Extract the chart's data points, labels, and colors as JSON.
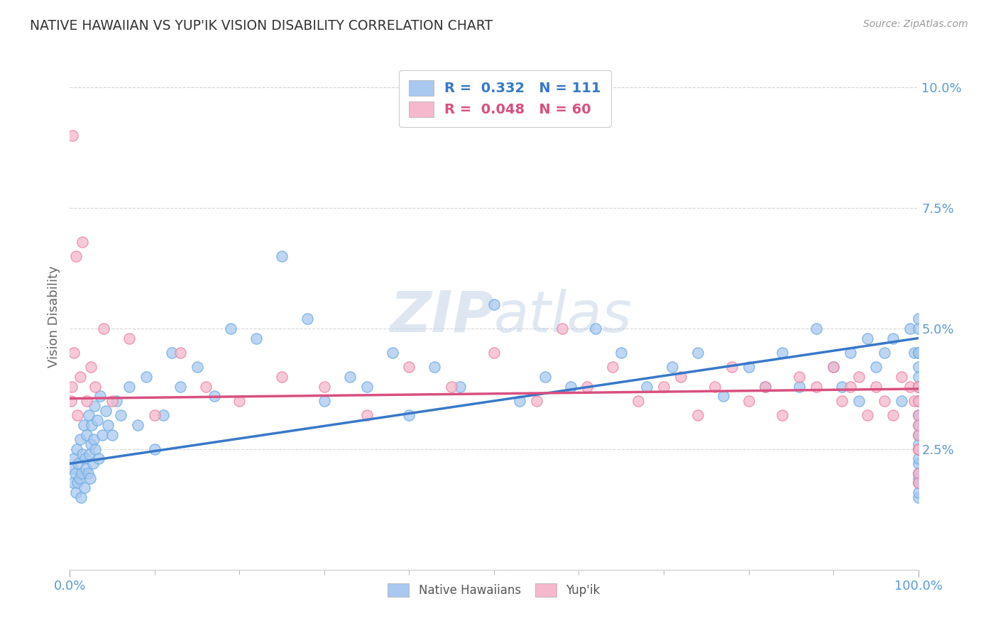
{
  "title": "NATIVE HAWAIIAN VS YUP'IK VISION DISABILITY CORRELATION CHART",
  "source": "Source: ZipAtlas.com",
  "ylabel": "Vision Disability",
  "xlim": [
    0,
    100
  ],
  "ylim": [
    0,
    10.5
  ],
  "blue_color": "#a8c8f0",
  "blue_edge_color": "#6aaae0",
  "pink_color": "#f5b8cc",
  "pink_edge_color": "#e880a0",
  "blue_line_color": "#3878c8",
  "pink_line_color": "#d85080",
  "watermark": "ZIPatlas",
  "background_color": "#ffffff",
  "grid_color": "#cccccc",
  "tick_color": "#5b9bd5",
  "title_color": "#333333",
  "blue_r": 0.332,
  "blue_n": 111,
  "pink_r": 0.048,
  "pink_n": 60,
  "blue_line_x0": 0,
  "blue_line_y0": 2.2,
  "blue_line_x1": 100,
  "blue_line_y1": 4.8,
  "pink_line_x0": 0,
  "pink_line_y0": 3.55,
  "pink_line_x1": 100,
  "pink_line_y1": 3.75,
  "blue_x": [
    0.3,
    0.4,
    0.5,
    0.6,
    0.7,
    0.8,
    0.9,
    1.0,
    1.1,
    1.2,
    1.3,
    1.4,
    1.5,
    1.6,
    1.7,
    1.8,
    1.9,
    2.0,
    2.1,
    2.2,
    2.3,
    2.4,
    2.5,
    2.6,
    2.7,
    2.8,
    2.9,
    3.0,
    3.2,
    3.4,
    3.6,
    3.8,
    4.2,
    4.5,
    5.0,
    5.5,
    6.0,
    7.0,
    8.0,
    9.0,
    10.0,
    11.0,
    12.0,
    13.0,
    15.0,
    17.0,
    19.0,
    22.0,
    25.0,
    28.0,
    30.0,
    33.0,
    35.0,
    38.0,
    40.0,
    43.0,
    46.0,
    50.0,
    53.0,
    56.0,
    59.0,
    62.0,
    65.0,
    68.0,
    71.0,
    74.0,
    77.0,
    80.0,
    82.0,
    84.0,
    86.0,
    88.0,
    90.0,
    91.0,
    92.0,
    93.0,
    94.0,
    95.0,
    96.0,
    97.0,
    98.0,
    99.0,
    99.5,
    100.0,
    100.0,
    100.0,
    100.0,
    100.0,
    100.0,
    100.0,
    100.0,
    100.0,
    100.0,
    100.0,
    100.0,
    100.0,
    100.0,
    100.0,
    100.0,
    100.0,
    100.0,
    100.0,
    100.0,
    100.0,
    100.0,
    100.0,
    100.0,
    100.0,
    100.0,
    100.0,
    100.0
  ],
  "blue_y": [
    2.1,
    1.8,
    2.3,
    2.0,
    1.6,
    2.5,
    1.8,
    2.2,
    1.9,
    2.7,
    1.5,
    2.0,
    2.4,
    3.0,
    1.7,
    2.3,
    2.1,
    2.8,
    2.0,
    3.2,
    2.4,
    1.9,
    2.6,
    3.0,
    2.2,
    2.7,
    3.4,
    2.5,
    3.1,
    2.3,
    3.6,
    2.8,
    3.3,
    3.0,
    2.8,
    3.5,
    3.2,
    3.8,
    3.0,
    4.0,
    2.5,
    3.2,
    4.5,
    3.8,
    4.2,
    3.6,
    5.0,
    4.8,
    6.5,
    5.2,
    3.5,
    4.0,
    3.8,
    4.5,
    3.2,
    4.2,
    3.8,
    5.5,
    3.5,
    4.0,
    3.8,
    5.0,
    4.5,
    3.8,
    4.2,
    4.5,
    3.6,
    4.2,
    3.8,
    4.5,
    3.8,
    5.0,
    4.2,
    3.8,
    4.5,
    3.5,
    4.8,
    4.2,
    4.5,
    4.8,
    3.5,
    5.0,
    4.5,
    2.0,
    2.5,
    3.0,
    1.5,
    3.8,
    2.2,
    4.5,
    1.8,
    3.2,
    5.0,
    2.8,
    3.5,
    1.9,
    4.2,
    2.3,
    2.8,
    3.5,
    1.6,
    4.0,
    2.5,
    3.8,
    1.8,
    3.2,
    5.2,
    2.0,
    3.0,
    4.5,
    2.6
  ],
  "pink_x": [
    0.1,
    0.2,
    0.3,
    0.5,
    0.7,
    0.9,
    1.2,
    1.5,
    2.0,
    2.5,
    3.0,
    4.0,
    5.0,
    7.0,
    10.0,
    13.0,
    16.0,
    20.0,
    25.0,
    30.0,
    35.0,
    40.0,
    45.0,
    50.0,
    55.0,
    58.0,
    61.0,
    64.0,
    67.0,
    70.0,
    72.0,
    74.0,
    76.0,
    78.0,
    80.0,
    82.0,
    84.0,
    86.0,
    88.0,
    90.0,
    91.0,
    92.0,
    93.0,
    94.0,
    95.0,
    96.0,
    97.0,
    98.0,
    99.0,
    99.5,
    100.0,
    100.0,
    100.0,
    100.0,
    100.0,
    100.0,
    100.0,
    100.0,
    100.0,
    100.0
  ],
  "pink_y": [
    3.5,
    3.8,
    9.0,
    4.5,
    6.5,
    3.2,
    4.0,
    6.8,
    3.5,
    4.2,
    3.8,
    5.0,
    3.5,
    4.8,
    3.2,
    4.5,
    3.8,
    3.5,
    4.0,
    3.8,
    3.2,
    4.2,
    3.8,
    4.5,
    3.5,
    5.0,
    3.8,
    4.2,
    3.5,
    3.8,
    4.0,
    3.2,
    3.8,
    4.2,
    3.5,
    3.8,
    3.2,
    4.0,
    3.8,
    4.2,
    3.5,
    3.8,
    4.0,
    3.2,
    3.8,
    3.5,
    3.2,
    4.0,
    3.8,
    3.5,
    2.0,
    3.8,
    2.5,
    3.2,
    1.8,
    3.5,
    2.8,
    3.0,
    2.5,
    3.8
  ]
}
